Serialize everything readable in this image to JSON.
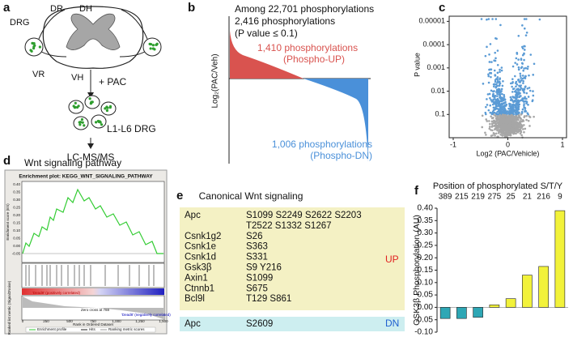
{
  "panel_a": {
    "letter": "a",
    "labels": [
      "DRG",
      "DR",
      "DH",
      "VR",
      "VH"
    ],
    "treatment": "+ PAC",
    "tissue": "L1-L6 DRG",
    "method": "LC-MS/MS"
  },
  "panel_b": {
    "letter": "b",
    "lines": [
      "Among 22,701 phosphorylations",
      "2,416 phosphorylations",
      "(P value ≤ 0.1)"
    ],
    "up": [
      "1,410 phosphorylations",
      "(Phospho-UP)"
    ],
    "down": [
      "1,006 phosphorylations",
      "(Phospho-DN)"
    ],
    "ylabel": "Log₂(PAC/Veh)",
    "up_color": "#d9534f",
    "down_color": "#4a90d9"
  },
  "panel_d": {
    "letter": "d",
    "title": "Wnt signaling pathway",
    "plot_title": "Enrichment plot: KEGG_WNT_SIGNALING_PATHWAY",
    "es_label": "Enrichment score (ES)",
    "es_ticks": [
      "0.40",
      "0.35",
      "0.30",
      "0.25",
      "0.20",
      "0.15",
      "0.10",
      "0.05",
      "0.00",
      "-0.05"
    ],
    "metric_label": "Ranked list metric (Signal2Noise)",
    "pos_note": "'Dead8' (positively correlated)",
    "zero_note": "Zero cross at 788",
    "neg_note": "'Dead8' (negatively correlated)",
    "x_ticks": [
      "0",
      "250",
      "500",
      "750",
      "1,000",
      "1,250",
      "1,500"
    ],
    "xlabel": "Rank in Ordered Dataset",
    "legend": [
      "Enrichment profile",
      "Hits",
      "Ranking metric scores"
    ]
  },
  "panel_e": {
    "letter": "e",
    "title": "Canonical Wnt signaling",
    "up_label": "UP",
    "dn_label": "DN",
    "up_rows": [
      {
        "gene": "Apc",
        "sites": [
          "S1099 S2249 S2622 S2203",
          "T2522 S1332 S1267"
        ]
      },
      {
        "gene": "Csnk1g2",
        "sites": [
          "S26"
        ]
      },
      {
        "gene": "Csnk1e",
        "sites": [
          "S363"
        ]
      },
      {
        "gene": "Csnk1d",
        "sites": [
          "S331"
        ]
      },
      {
        "gene": "Gsk3β",
        "sites": [
          "S9 Y216"
        ]
      },
      {
        "gene": "Axin1",
        "sites": [
          "S1099"
        ]
      },
      {
        "gene": "Ctnnb1",
        "sites": [
          "S675"
        ]
      },
      {
        "gene": "Bcl9l",
        "sites": [
          "T129 S861"
        ]
      }
    ],
    "dn_rows": [
      {
        "gene": "Apc",
        "sites": [
          "S2609"
        ]
      }
    ]
  },
  "chart_data": [
    {
      "type": "scatter",
      "panel": "c",
      "xlabel": "Log2 (PAC/Vehicle)",
      "ylabel": "P value",
      "log_y": true,
      "xlim": [
        -1,
        1
      ],
      "xticks": [
        -1,
        0,
        1
      ],
      "ylim": [
        1,
        6e-06
      ],
      "yticks": [
        {
          "value": 1e-05,
          "label": "0.00001"
        },
        0.0001,
        0.001,
        0.01,
        0.1
      ],
      "sig_color": "#5b9bd5",
      "ns_color": "#a6a6a6"
    },
    {
      "type": "bar",
      "panel": "f",
      "title": "Position of phosphorylated S/T/Y",
      "ylabel": "GSK3β Phosphorylation (AU)",
      "categories": [
        "389",
        "215",
        "219",
        "275",
        "25",
        "21",
        "216",
        "9"
      ],
      "values": [
        -0.045,
        -0.045,
        -0.04,
        0.01,
        0.035,
        0.13,
        0.165,
        0.39
      ],
      "colors": [
        "#2ea7b5",
        "#2ea7b5",
        "#2ea7b5",
        "#f2f23a",
        "#f2f23a",
        "#f2f23a",
        "#f2f23a",
        "#f2f23a"
      ],
      "ylim": [
        -0.1,
        0.4
      ],
      "yticks": [
        {
          "value": -0.1,
          "label": "-0.10"
        },
        {
          "value": -0.05,
          "label": "-0.05"
        },
        {
          "value": 0,
          "label": "0.00"
        },
        {
          "value": 0.05,
          "label": "0.05"
        },
        {
          "value": 0.1,
          "label": "0.10"
        },
        {
          "value": 0.15,
          "label": "0.15"
        },
        {
          "value": 0.2,
          "label": "0.20"
        },
        {
          "value": 0.25,
          "label": "0.25"
        },
        {
          "value": 0.3,
          "label": "0.30"
        },
        {
          "value": 0.35,
          "label": "0.35"
        },
        {
          "value": 0.4,
          "label": "0.40"
        }
      ]
    }
  ]
}
